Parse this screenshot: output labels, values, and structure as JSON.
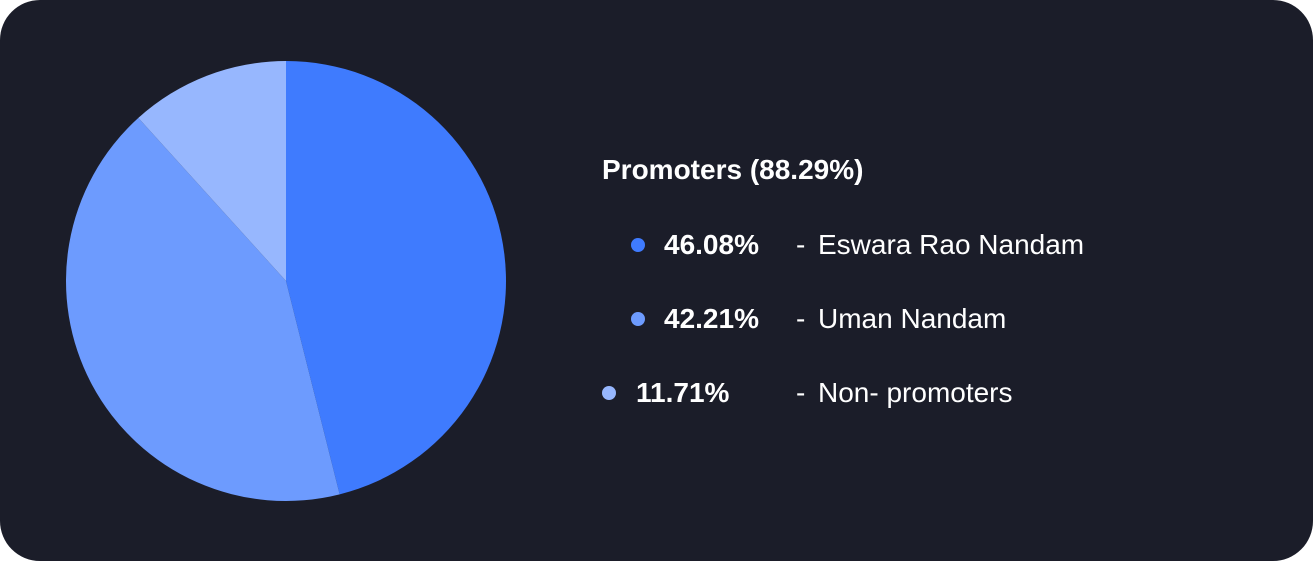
{
  "chart_data": {
    "type": "pie",
    "title": "Promoters (88.29%)",
    "slices": [
      {
        "label": "Eswara Rao Nandam",
        "value": 46.08,
        "value_label": "46.08%",
        "color": "#3f7bfe"
      },
      {
        "label": "Uman Nandam",
        "value": 42.21,
        "value_label": "42.21%",
        "color": "#6d9bfe"
      },
      {
        "label": "Non- promoters",
        "value": 11.71,
        "value_label": "11.71%",
        "color": "#97b7fe"
      }
    ],
    "legend_placement": "right",
    "start_angle": "top, clockwise"
  },
  "legend": {
    "dash": "-"
  },
  "colors": {
    "background": "#1b1d29",
    "text": "#ffffff"
  }
}
